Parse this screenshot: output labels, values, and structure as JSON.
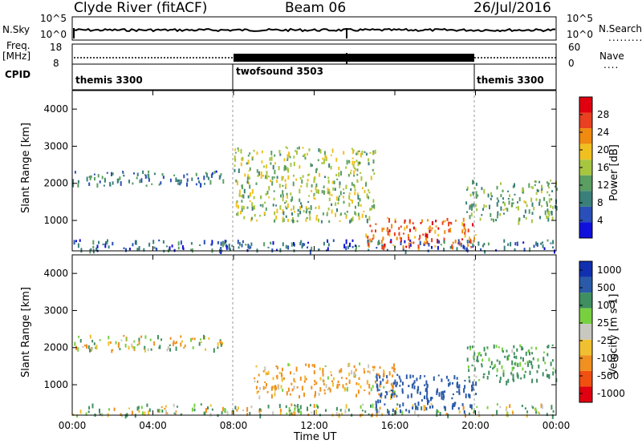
{
  "header": {
    "station": "Clyde River (fitACF)",
    "beam": "Beam 06",
    "date": "26/Jul/2016"
  },
  "noise_panel": {
    "left_label": "N.Sky",
    "left_ticks": [
      "10^5",
      "10^0"
    ],
    "right_ticks": [
      "10^5",
      "10^0"
    ],
    "right_label": "N.Search"
  },
  "freq_panel": {
    "left_label_1": "Freq.",
    "left_label_2": "[MHz]",
    "left_ticks": [
      "18",
      "8"
    ],
    "right_ticks": [
      "60",
      "0"
    ],
    "right_label": "Nave"
  },
  "cpid_panel": {
    "label": "CPID",
    "segments": [
      "themis 3300",
      "twofsound 3503",
      "themis 3300"
    ]
  },
  "colors": {
    "power_scale": [
      "#1010dd",
      "#2a4fb8",
      "#3a7f7a",
      "#5b9e62",
      "#a8c540",
      "#f0c020",
      "#f08a10",
      "#e84020",
      "#e00010"
    ],
    "velocity_scale": [
      "#e00010",
      "#f05010",
      "#f09020",
      "#f0c030",
      "#c8c8c0",
      "#78d040",
      "#3f8f60",
      "#2a5aa8",
      "#1030b0"
    ]
  },
  "chart_data": [
    {
      "type": "heatmap",
      "title": "",
      "xlabel": "",
      "ylabel": "Slant Range [km]",
      "xlim": [
        0,
        24
      ],
      "ylim": [
        180,
        4500
      ],
      "x_ticks": [
        "00:00",
        "04:00",
        "08:00",
        "12:00",
        "16:00",
        "20:00",
        "00:00"
      ],
      "y_ticks": [
        "1000",
        "2000",
        "3000",
        "4000"
      ],
      "colorbar": {
        "label": "Power [dB]",
        "ticks": [
          "28",
          "24",
          "20",
          "16",
          "12",
          "8",
          "4"
        ],
        "range": [
          0,
          30
        ]
      },
      "features": [
        {
          "name": "near-range scatter band",
          "x_range_hours": [
            0,
            24
          ],
          "range_km": [
            200,
            500
          ],
          "power_db": 6
        },
        {
          "name": "far band 2000-2300 km",
          "x_range_hours": [
            0,
            7.5
          ],
          "range_km": [
            1950,
            2350
          ],
          "power_db": 8
        },
        {
          "name": "arc after 08 UT",
          "x_range_hours": [
            8,
            15
          ],
          "range_km": [
            1000,
            3000
          ],
          "power_db": 14
        },
        {
          "name": "strong echoes",
          "x_range_hours": [
            14.5,
            20
          ],
          "range_km": [
            300,
            1100
          ],
          "power_db": 24
        },
        {
          "name": "late echoes",
          "x_range_hours": [
            19.5,
            24
          ],
          "range_km": [
            1000,
            2100
          ],
          "power_db": 12
        }
      ]
    },
    {
      "type": "heatmap",
      "title": "",
      "xlabel": "Time UT",
      "ylabel": "Slant Range [km]",
      "xlim": [
        0,
        24
      ],
      "ylim": [
        180,
        4500
      ],
      "x_ticks": [
        "00:00",
        "04:00",
        "08:00",
        "12:00",
        "16:00",
        "20:00",
        "00:00"
      ],
      "y_ticks": [
        "1000",
        "2000",
        "3000",
        "4000"
      ],
      "colorbar": {
        "label": "Velocity [m s-1]",
        "ticks": [
          "1000",
          "500",
          "100",
          "25",
          "-25",
          "-100",
          "-500",
          "-1000"
        ],
        "range": [
          -1000,
          1000
        ]
      },
      "features": [
        {
          "name": "near-range ground scatter",
          "x_range_hours": [
            0,
            24
          ],
          "range_km": [
            200,
            500
          ],
          "velocity_ms": 50
        },
        {
          "name": "far band low velocity",
          "x_range_hours": [
            0,
            7.5
          ],
          "range_km": [
            1950,
            2350
          ],
          "velocity_ms": 0
        },
        {
          "name": "negative velocity echoes",
          "x_range_hours": [
            9,
            16
          ],
          "range_km": [
            700,
            1600
          ],
          "velocity_ms": -150
        },
        {
          "name": "positive velocity echoes",
          "x_range_hours": [
            15,
            20
          ],
          "range_km": [
            300,
            1300
          ],
          "velocity_ms": 700
        },
        {
          "name": "late echoes",
          "x_range_hours": [
            19.5,
            24
          ],
          "range_km": [
            1100,
            2100
          ],
          "velocity_ms": 200
        }
      ]
    }
  ]
}
